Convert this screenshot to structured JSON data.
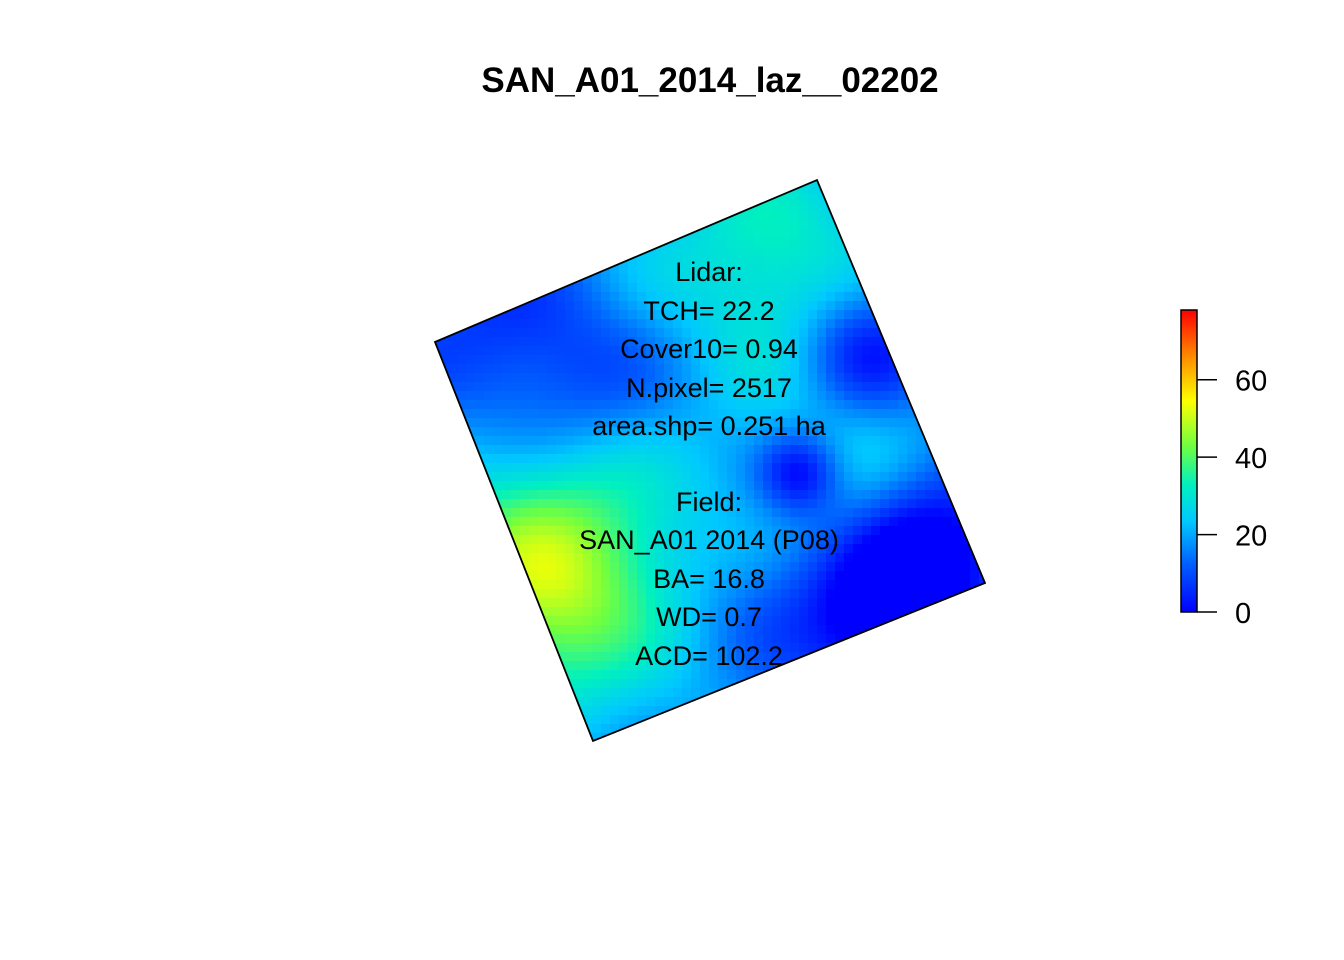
{
  "title": "SAN_A01_2014_laz__02202",
  "lidar": {
    "heading": "Lidar:",
    "tch": "TCH= 22.2",
    "cover": "Cover10= 0.94",
    "npixel": "N.pixel= 2517",
    "area": "area.shp= 0.251 ha"
  },
  "field": {
    "heading": "Field:",
    "plot": "SAN_A01 2014 (P08)",
    "ba": "BA= 16.8",
    "wd": "WD= 0.7",
    "acd": "ACD= 102.2"
  },
  "legend": {
    "min": 0,
    "max": 78,
    "ticks": [
      "0",
      "20",
      "40",
      "60"
    ],
    "tick_values": [
      0,
      20,
      40,
      60
    ],
    "colormap": "rainbow"
  }
}
